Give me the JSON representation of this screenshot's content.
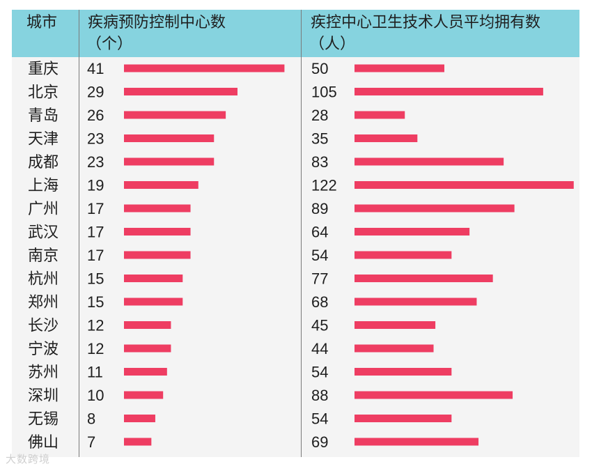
{
  "header": {
    "col_city": "城市",
    "col_centers": "疾病预防控制中心数",
    "col_centers_unit": "（个）",
    "col_staff": "疾控中心卫生技术人员平均拥有数",
    "col_staff_unit": "（人）"
  },
  "colors": {
    "header_bg": "#86d3df",
    "bar": "#ee3d62",
    "panel_bg": "#f4f4f4"
  },
  "watermark": "大数跨境",
  "chart_data": [
    {
      "type": "bar",
      "orientation": "horizontal",
      "title": "疾病预防控制中心数（个）",
      "categories": [
        "重庆",
        "北京",
        "青岛",
        "天津",
        "成都",
        "上海",
        "广州",
        "武汉",
        "南京",
        "杭州",
        "郑州",
        "长沙",
        "宁波",
        "苏州",
        "深圳",
        "无锡",
        "佛山"
      ],
      "values": [
        41,
        29,
        26,
        23,
        23,
        19,
        17,
        17,
        17,
        15,
        15,
        12,
        12,
        11,
        10,
        8,
        7
      ]
    },
    {
      "type": "bar",
      "orientation": "horizontal",
      "title": "疾控中心卫生技术人员平均拥有数（人）",
      "categories": [
        "重庆",
        "北京",
        "青岛",
        "天津",
        "成都",
        "上海",
        "广州",
        "武汉",
        "南京",
        "杭州",
        "郑州",
        "长沙",
        "宁波",
        "苏州",
        "深圳",
        "无锡",
        "佛山"
      ],
      "values": [
        50,
        105,
        28,
        35,
        83,
        122,
        89,
        64,
        54,
        77,
        68,
        45,
        44,
        54,
        88,
        54,
        69
      ]
    }
  ]
}
